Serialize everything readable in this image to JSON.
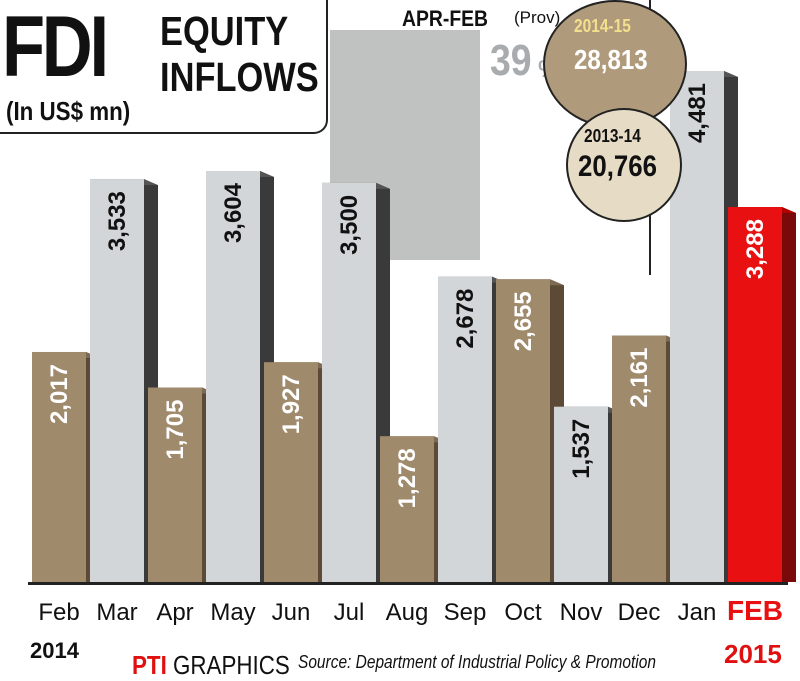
{
  "header": {
    "title_main": "FDI",
    "title_sub_line1": "EQUITY",
    "title_sub_line2": "INFLOWS",
    "unit": "(In US$ mn)"
  },
  "summary": {
    "period_label": "APR-FEB",
    "prov_label": "(Prov)",
    "growth_value": "39",
    "growth_unit": "%",
    "current_year": "2014-15",
    "current_value": "28,813",
    "previous_year": "2013-14",
    "previous_value": "20,766"
  },
  "year_labels": {
    "start": "2014",
    "end": "2015"
  },
  "footer": {
    "brand_logo": "PTI",
    "brand_text": "GRAPHICS",
    "source": "Source: Department of Industrial Policy & Promotion"
  },
  "colors": {
    "tan_bar": "#a08a6c",
    "grey_bar": "#d3d6d8",
    "highlight_bar": "#e81010",
    "bar_side": "#3a3a3a",
    "background": "#ffffff"
  },
  "chart_data": {
    "type": "bar",
    "categories": [
      "Feb",
      "Mar",
      "Apr",
      "May",
      "Jun",
      "Jul",
      "Aug",
      "Sep",
      "Oct",
      "Nov",
      "Dec",
      "Jan",
      "FEB"
    ],
    "values": [
      2017,
      3533,
      1705,
      3604,
      1927,
      3500,
      1278,
      2678,
      2655,
      1537,
      2161,
      4481,
      3288
    ],
    "value_labels": [
      "2,017",
      "3,533",
      "1,705",
      "3,604",
      "1,927",
      "3,500",
      "1,278",
      "2,678",
      "2,655",
      "1,537",
      "2,161",
      "4,481",
      "3,288"
    ],
    "bar_styles": [
      "tan",
      "grey",
      "tan",
      "grey",
      "tan",
      "grey",
      "tan",
      "grey",
      "tan",
      "grey",
      "tan",
      "grey",
      "red"
    ],
    "highlight": "FEB",
    "ylim": [
      0,
      4700
    ],
    "title": "FDI EQUITY INFLOWS",
    "ylabel": "",
    "xlabel": "",
    "grid": false
  }
}
